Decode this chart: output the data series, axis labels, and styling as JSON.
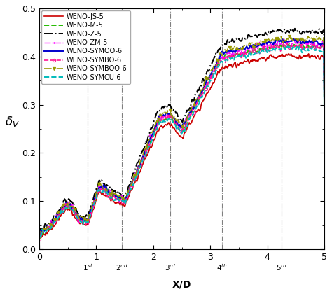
{
  "xlabel": "X/D",
  "ylabel": "$\\delta_V$",
  "xlim": [
    0,
    5
  ],
  "ylim": [
    0.0,
    0.5
  ],
  "xticks": [
    0,
    1,
    2,
    3,
    4,
    5
  ],
  "yticks": [
    0.0,
    0.1,
    0.2,
    0.3,
    0.4,
    0.5
  ],
  "vlines": [
    0.85,
    1.45,
    2.3,
    3.2,
    4.25
  ],
  "vline_labels": [
    "1$^{st}$",
    "2$^{nd}$",
    "3$^{rd}$",
    "4$^{th}$",
    "5$^{th}$"
  ],
  "series": [
    {
      "label": "WENO-JS-5",
      "color": "#cc0000",
      "ls": "-",
      "lw": 1.2,
      "marker": null,
      "ms": 0,
      "markevery": null
    },
    {
      "label": "WENO-M-5",
      "color": "#22bb00",
      "ls": "--",
      "lw": 1.4,
      "marker": null,
      "ms": 0,
      "markevery": null
    },
    {
      "label": "WENO-Z-5",
      "color": "#000000",
      "ls": "-.",
      "lw": 1.4,
      "marker": null,
      "ms": 0,
      "markevery": null
    },
    {
      "label": "WENO-ZM-5",
      "color": "#ff00ff",
      "ls": "-.",
      "lw": 1.0,
      "marker": ".",
      "ms": 2,
      "markevery": 8
    },
    {
      "label": "WENO-SYMOO-6",
      "color": "#0000cc",
      "ls": "-",
      "lw": 1.4,
      "marker": null,
      "ms": 0,
      "markevery": null
    },
    {
      "label": "WENO-SYMBO-6",
      "color": "#ff1493",
      "ls": "--",
      "lw": 1.2,
      "marker": "o",
      "ms": 3,
      "markevery": 25
    },
    {
      "label": "WENO-SYMBOO-6",
      "color": "#999900",
      "ls": "-.",
      "lw": 1.2,
      "marker": "v",
      "ms": 3,
      "markevery": 25
    },
    {
      "label": "WENO-SYMCU-6",
      "color": "#00bbbb",
      "ls": "--",
      "lw": 1.4,
      "marker": null,
      "ms": 0,
      "markevery": null
    }
  ]
}
